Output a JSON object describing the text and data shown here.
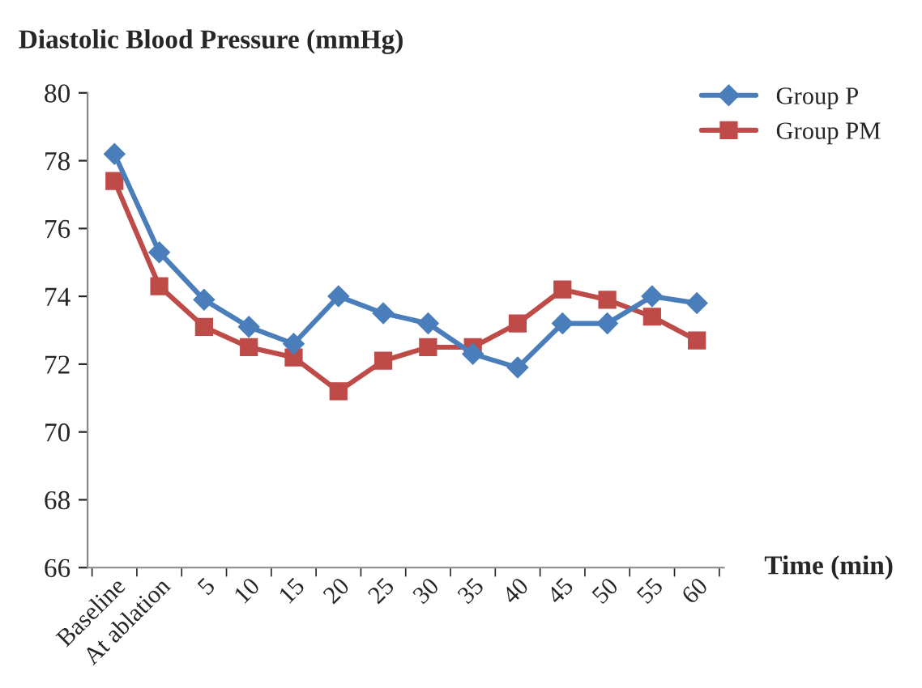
{
  "chart_data": {
    "type": "line",
    "title": "Diastolic Blood Pressure (mmHg)",
    "xlabel": "Time (min)",
    "categories": [
      "Baseline",
      "At ablation",
      "5",
      "10",
      "15",
      "20",
      "25",
      "30",
      "35",
      "40",
      "45",
      "50",
      "55",
      "60"
    ],
    "series": [
      {
        "name": "Group P",
        "color": "#4a7ebb",
        "marker": "diamond",
        "values": [
          78.2,
          75.3,
          73.9,
          73.1,
          72.6,
          74.0,
          73.5,
          73.2,
          72.3,
          71.9,
          73.2,
          73.2,
          74.0,
          73.8
        ]
      },
      {
        "name": "Group PM",
        "color": "#be4b48",
        "marker": "square",
        "values": [
          77.4,
          74.3,
          73.1,
          72.5,
          72.2,
          71.2,
          72.1,
          72.5,
          72.5,
          73.2,
          74.2,
          73.9,
          73.4,
          72.7
        ]
      }
    ],
    "ylim": [
      66,
      80
    ],
    "yticks": [
      66,
      68,
      70,
      72,
      74,
      76,
      78,
      80
    ],
    "grid": false,
    "legend": "top right",
    "line_style": "solid"
  }
}
